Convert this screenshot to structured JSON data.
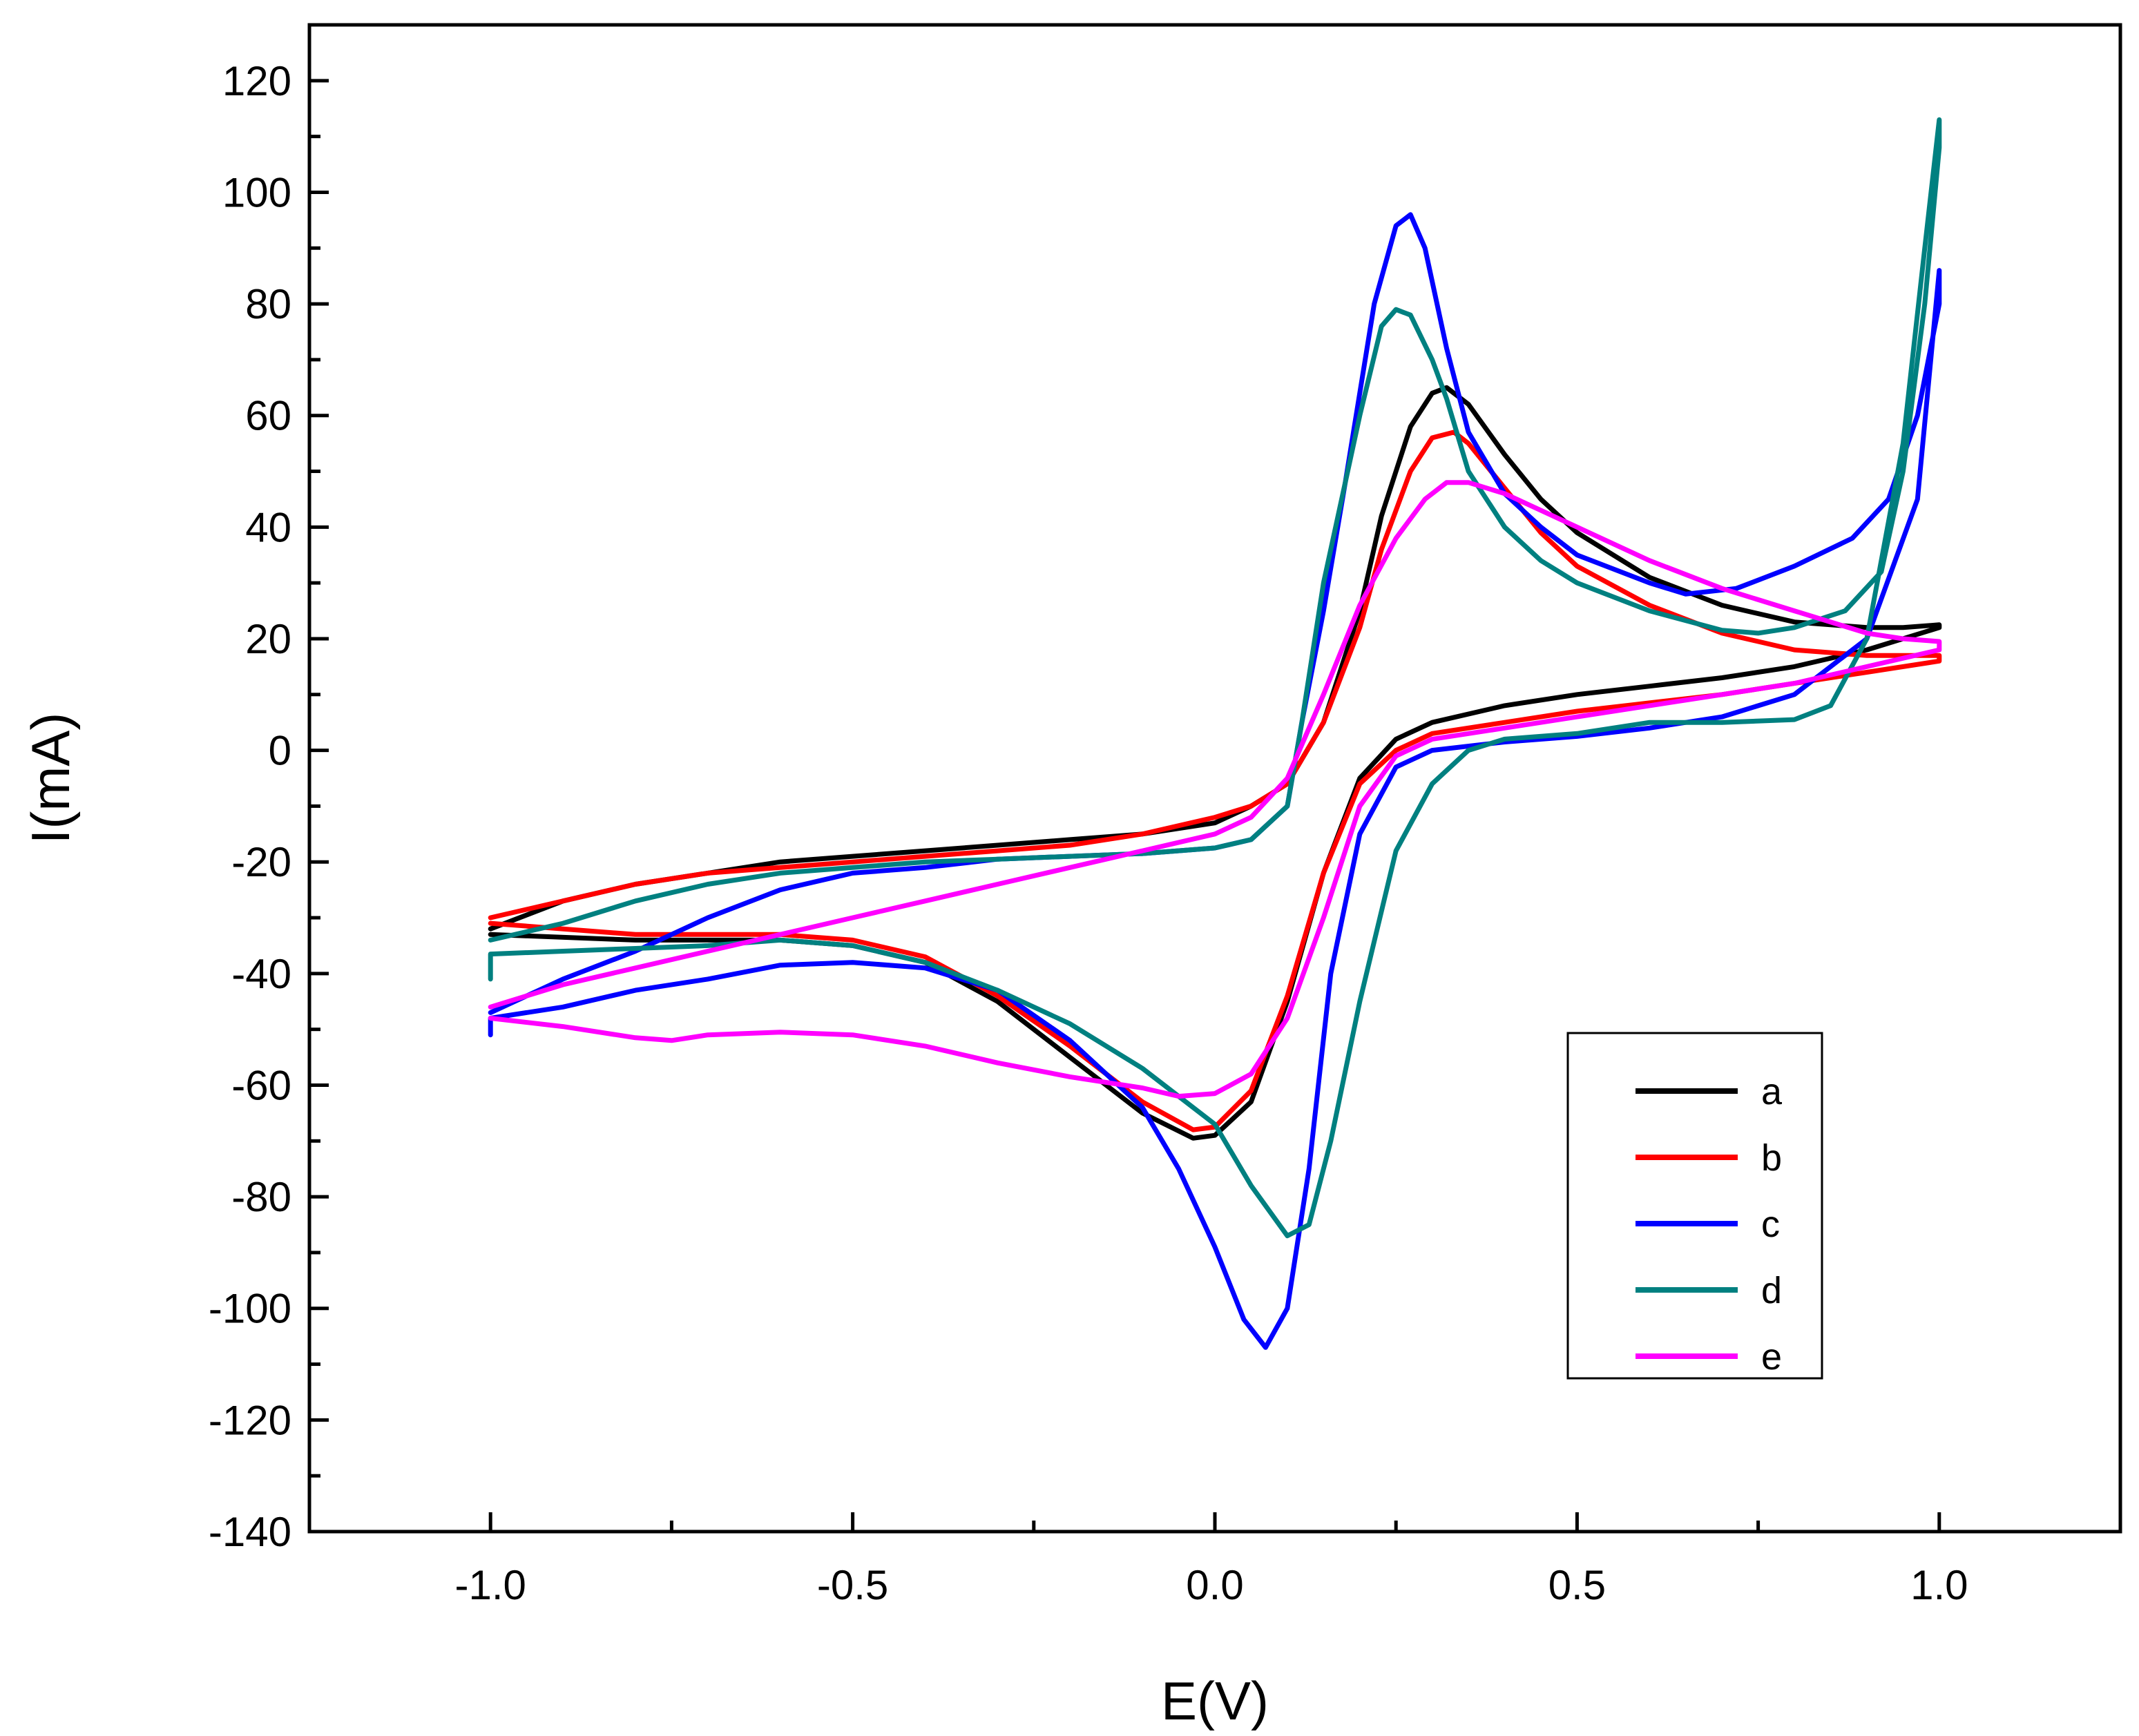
{
  "chart_data": {
    "type": "line",
    "title": "",
    "xlabel": "E(V)",
    "ylabel": "I(mA)",
    "xlim": [
      -1.25,
      1.25
    ],
    "ylim": [
      -140,
      130
    ],
    "xticks": [
      -1.0,
      -0.5,
      0.0,
      0.5,
      1.0
    ],
    "xtick_labels": [
      "-1.0",
      "-0.5",
      "0.0",
      "0.5",
      "1.0"
    ],
    "yticks": [
      -140,
      -120,
      -100,
      -80,
      -60,
      -40,
      -20,
      0,
      20,
      40,
      60,
      80,
      100,
      120
    ],
    "ytick_labels": [
      "-140",
      "-120",
      "-100",
      "-80",
      "-60",
      "-40",
      "-20",
      "0",
      "20",
      "40",
      "60",
      "80",
      "100",
      "120"
    ],
    "grid": false,
    "legend_position": "bottom-right",
    "series": [
      {
        "name": "a",
        "color": "#000000",
        "points": [
          [
            -1.0,
            -33
          ],
          [
            -0.8,
            -34
          ],
          [
            -0.6,
            -34
          ],
          [
            -0.5,
            -35
          ],
          [
            -0.4,
            -38
          ],
          [
            -0.3,
            -45
          ],
          [
            -0.2,
            -55
          ],
          [
            -0.1,
            -65
          ],
          [
            -0.03,
            -69.5
          ],
          [
            0.0,
            -69
          ],
          [
            0.05,
            -63
          ],
          [
            0.1,
            -45
          ],
          [
            0.15,
            -22
          ],
          [
            0.2,
            -5
          ],
          [
            0.25,
            2
          ],
          [
            0.3,
            5
          ],
          [
            0.4,
            8
          ],
          [
            0.5,
            10
          ],
          [
            0.6,
            11.5
          ],
          [
            0.7,
            13
          ],
          [
            0.8,
            15
          ],
          [
            0.9,
            18
          ],
          [
            1.0,
            22
          ],
          [
            1.0,
            22.5
          ],
          [
            0.95,
            22
          ],
          [
            0.9,
            22
          ],
          [
            0.8,
            23
          ],
          [
            0.7,
            26
          ],
          [
            0.6,
            31
          ],
          [
            0.5,
            39
          ],
          [
            0.45,
            45
          ],
          [
            0.4,
            53
          ],
          [
            0.35,
            62
          ],
          [
            0.32,
            65
          ],
          [
            0.3,
            64
          ],
          [
            0.27,
            58
          ],
          [
            0.23,
            42
          ],
          [
            0.2,
            25
          ],
          [
            0.15,
            5
          ],
          [
            0.1,
            -6
          ],
          [
            0.05,
            -10
          ],
          [
            0.0,
            -13
          ],
          [
            -0.1,
            -15
          ],
          [
            -0.2,
            -16
          ],
          [
            -0.3,
            -17
          ],
          [
            -0.4,
            -18
          ],
          [
            -0.5,
            -19
          ],
          [
            -0.6,
            -20
          ],
          [
            -0.7,
            -22
          ],
          [
            -0.8,
            -24
          ],
          [
            -0.9,
            -27
          ],
          [
            -1.0,
            -32
          ]
        ]
      },
      {
        "name": "b",
        "color": "#ff0000",
        "points": [
          [
            -1.0,
            -31
          ],
          [
            -0.8,
            -33
          ],
          [
            -0.6,
            -33
          ],
          [
            -0.5,
            -34
          ],
          [
            -0.4,
            -37
          ],
          [
            -0.3,
            -44
          ],
          [
            -0.2,
            -53
          ],
          [
            -0.1,
            -63
          ],
          [
            -0.03,
            -68
          ],
          [
            0.0,
            -67.5
          ],
          [
            0.05,
            -61
          ],
          [
            0.1,
            -44
          ],
          [
            0.15,
            -22
          ],
          [
            0.2,
            -6
          ],
          [
            0.25,
            0
          ],
          [
            0.3,
            3
          ],
          [
            0.4,
            5
          ],
          [
            0.5,
            7
          ],
          [
            0.6,
            8.5
          ],
          [
            0.7,
            10
          ],
          [
            0.8,
            12
          ],
          [
            0.9,
            14
          ],
          [
            1.0,
            16
          ],
          [
            1.0,
            17
          ],
          [
            0.95,
            17
          ],
          [
            0.9,
            17
          ],
          [
            0.8,
            18
          ],
          [
            0.7,
            21
          ],
          [
            0.6,
            26
          ],
          [
            0.5,
            33
          ],
          [
            0.45,
            39
          ],
          [
            0.4,
            47
          ],
          [
            0.35,
            55
          ],
          [
            0.33,
            57
          ],
          [
            0.3,
            56
          ],
          [
            0.27,
            50
          ],
          [
            0.23,
            36
          ],
          [
            0.2,
            22
          ],
          [
            0.15,
            5
          ],
          [
            0.1,
            -6
          ],
          [
            0.05,
            -10
          ],
          [
            0.0,
            -12
          ],
          [
            -0.1,
            -15
          ],
          [
            -0.2,
            -17
          ],
          [
            -0.3,
            -18
          ],
          [
            -0.4,
            -19
          ],
          [
            -0.5,
            -20
          ],
          [
            -0.6,
            -21
          ],
          [
            -0.7,
            -22
          ],
          [
            -0.8,
            -24
          ],
          [
            -0.9,
            -27
          ],
          [
            -1.0,
            -30
          ]
        ]
      },
      {
        "name": "c",
        "color": "#0000ff",
        "points": [
          [
            -1.0,
            -51
          ],
          [
            -1.0,
            -48
          ],
          [
            -0.9,
            -46
          ],
          [
            -0.8,
            -43
          ],
          [
            -0.7,
            -41
          ],
          [
            -0.6,
            -38.5
          ],
          [
            -0.5,
            -38
          ],
          [
            -0.4,
            -39
          ],
          [
            -0.3,
            -43
          ],
          [
            -0.2,
            -52
          ],
          [
            -0.1,
            -64
          ],
          [
            -0.05,
            -75
          ],
          [
            0.0,
            -89
          ],
          [
            0.04,
            -102
          ],
          [
            0.07,
            -107
          ],
          [
            0.1,
            -100
          ],
          [
            0.13,
            -75
          ],
          [
            0.16,
            -40
          ],
          [
            0.2,
            -15
          ],
          [
            0.25,
            -3
          ],
          [
            0.3,
            0
          ],
          [
            0.4,
            1.5
          ],
          [
            0.5,
            2.5
          ],
          [
            0.6,
            4
          ],
          [
            0.7,
            6
          ],
          [
            0.8,
            10
          ],
          [
            0.9,
            20
          ],
          [
            0.97,
            45
          ],
          [
            1.0,
            86
          ],
          [
            1.0,
            80
          ],
          [
            0.97,
            60
          ],
          [
            0.93,
            45
          ],
          [
            0.88,
            38
          ],
          [
            0.8,
            33
          ],
          [
            0.72,
            29
          ],
          [
            0.65,
            28
          ],
          [
            0.6,
            30
          ],
          [
            0.5,
            35
          ],
          [
            0.45,
            40
          ],
          [
            0.4,
            46
          ],
          [
            0.35,
            57
          ],
          [
            0.32,
            72
          ],
          [
            0.29,
            90
          ],
          [
            0.27,
            96
          ],
          [
            0.25,
            94
          ],
          [
            0.22,
            80
          ],
          [
            0.18,
            48
          ],
          [
            0.15,
            25
          ],
          [
            0.12,
            5
          ],
          [
            0.1,
            -10
          ],
          [
            0.05,
            -16
          ],
          [
            0.0,
            -17.5
          ],
          [
            -0.1,
            -18.5
          ],
          [
            -0.2,
            -19
          ],
          [
            -0.3,
            -19.5
          ],
          [
            -0.4,
            -21
          ],
          [
            -0.5,
            -22
          ],
          [
            -0.6,
            -25
          ],
          [
            -0.7,
            -30
          ],
          [
            -0.8,
            -36
          ],
          [
            -0.9,
            -41
          ],
          [
            -1.0,
            -47
          ]
        ]
      },
      {
        "name": "d",
        "color": "#008080",
        "points": [
          [
            -1.0,
            -41
          ],
          [
            -1.0,
            -36.5
          ],
          [
            -0.9,
            -36
          ],
          [
            -0.8,
            -35.5
          ],
          [
            -0.7,
            -35
          ],
          [
            -0.6,
            -34
          ],
          [
            -0.5,
            -35
          ],
          [
            -0.4,
            -38
          ],
          [
            -0.3,
            -43
          ],
          [
            -0.2,
            -49
          ],
          [
            -0.1,
            -57
          ],
          [
            0.0,
            -67
          ],
          [
            0.05,
            -78
          ],
          [
            0.1,
            -87
          ],
          [
            0.13,
            -85
          ],
          [
            0.16,
            -70
          ],
          [
            0.2,
            -45
          ],
          [
            0.25,
            -18
          ],
          [
            0.3,
            -6
          ],
          [
            0.35,
            0
          ],
          [
            0.4,
            2
          ],
          [
            0.5,
            3
          ],
          [
            0.6,
            5
          ],
          [
            0.7,
            5
          ],
          [
            0.8,
            5.5
          ],
          [
            0.85,
            8
          ],
          [
            0.9,
            20
          ],
          [
            0.95,
            55
          ],
          [
            0.98,
            90
          ],
          [
            1.0,
            113
          ],
          [
            1.0,
            108
          ],
          [
            0.98,
            80
          ],
          [
            0.95,
            50
          ],
          [
            0.92,
            32
          ],
          [
            0.87,
            25
          ],
          [
            0.8,
            22
          ],
          [
            0.75,
            21
          ],
          [
            0.7,
            21.5
          ],
          [
            0.6,
            25
          ],
          [
            0.5,
            30
          ],
          [
            0.45,
            34
          ],
          [
            0.4,
            40
          ],
          [
            0.35,
            50
          ],
          [
            0.32,
            63
          ],
          [
            0.3,
            70
          ],
          [
            0.27,
            78
          ],
          [
            0.25,
            79
          ],
          [
            0.23,
            76
          ],
          [
            0.2,
            60
          ],
          [
            0.15,
            30
          ],
          [
            0.12,
            5
          ],
          [
            0.1,
            -10
          ],
          [
            0.05,
            -16
          ],
          [
            0.0,
            -17.5
          ],
          [
            -0.1,
            -18.5
          ],
          [
            -0.2,
            -19
          ],
          [
            -0.3,
            -19.5
          ],
          [
            -0.4,
            -20
          ],
          [
            -0.5,
            -21
          ],
          [
            -0.6,
            -22
          ],
          [
            -0.7,
            -24
          ],
          [
            -0.8,
            -27
          ],
          [
            -0.9,
            -31
          ],
          [
            -1.0,
            -34
          ]
        ]
      },
      {
        "name": "e",
        "color": "#ff00ff",
        "points": [
          [
            -1.0,
            -48
          ],
          [
            -0.9,
            -49.5
          ],
          [
            -0.8,
            -51.5
          ],
          [
            -0.75,
            -52
          ],
          [
            -0.7,
            -51
          ],
          [
            -0.6,
            -50.5
          ],
          [
            -0.5,
            -51
          ],
          [
            -0.4,
            -53
          ],
          [
            -0.3,
            -56
          ],
          [
            -0.2,
            -58.5
          ],
          [
            -0.1,
            -60.5
          ],
          [
            -0.05,
            -62
          ],
          [
            0.0,
            -61.5
          ],
          [
            0.05,
            -58
          ],
          [
            0.1,
            -48
          ],
          [
            0.15,
            -30
          ],
          [
            0.2,
            -10
          ],
          [
            0.25,
            -1
          ],
          [
            0.3,
            2
          ],
          [
            0.4,
            4
          ],
          [
            0.5,
            6
          ],
          [
            0.6,
            8
          ],
          [
            0.7,
            10
          ],
          [
            0.8,
            12
          ],
          [
            0.9,
            15
          ],
          [
            1.0,
            18
          ],
          [
            1.0,
            19.5
          ],
          [
            0.95,
            20
          ],
          [
            0.9,
            21
          ],
          [
            0.8,
            25
          ],
          [
            0.7,
            29
          ],
          [
            0.6,
            34
          ],
          [
            0.5,
            40
          ],
          [
            0.45,
            43
          ],
          [
            0.4,
            46
          ],
          [
            0.35,
            48
          ],
          [
            0.32,
            48
          ],
          [
            0.29,
            45
          ],
          [
            0.25,
            38
          ],
          [
            0.2,
            26
          ],
          [
            0.15,
            10
          ],
          [
            0.1,
            -5
          ],
          [
            0.05,
            -12
          ],
          [
            0.0,
            -15
          ],
          [
            -0.1,
            -18
          ],
          [
            -0.2,
            -21
          ],
          [
            -0.3,
            -24
          ],
          [
            -0.4,
            -27
          ],
          [
            -0.5,
            -30
          ],
          [
            -0.6,
            -33
          ],
          [
            -0.7,
            -36
          ],
          [
            -0.8,
            -39
          ],
          [
            -0.9,
            -42
          ],
          [
            -1.0,
            -46
          ]
        ]
      }
    ]
  }
}
